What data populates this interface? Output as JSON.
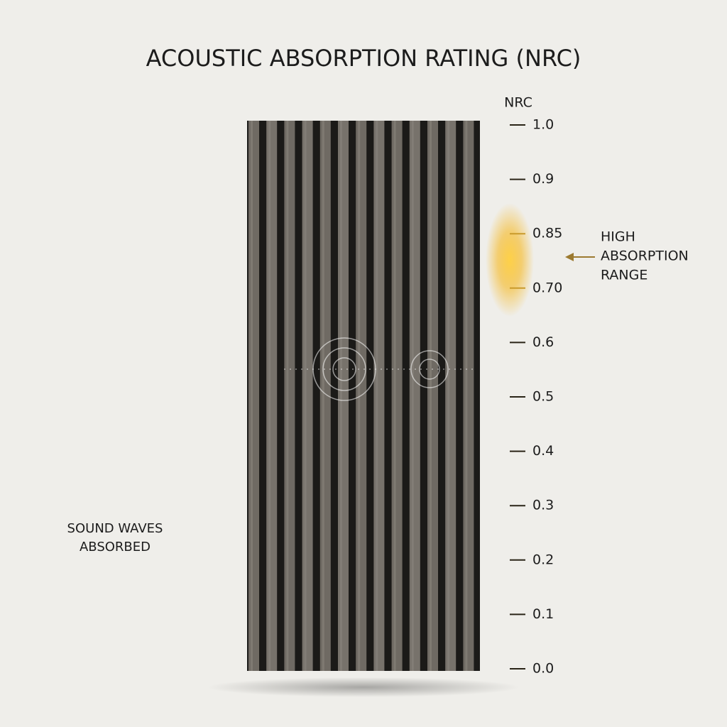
{
  "title": "ACOUSTIC ABSORPTION RATING (NRC)",
  "scale": {
    "label": "NRC",
    "ticks": [
      "1.0",
      "0.9",
      "0.85",
      "0.70",
      "0.6",
      "0.5",
      "0.4",
      "0.3",
      "0.2",
      "0.1",
      "0.0"
    ]
  },
  "callout": {
    "lines": [
      "HIGH",
      "ABSORPTION",
      "RANGE"
    ]
  },
  "caption": {
    "lines": [
      "SOUND WAVES",
      "ABSORBED"
    ]
  }
}
